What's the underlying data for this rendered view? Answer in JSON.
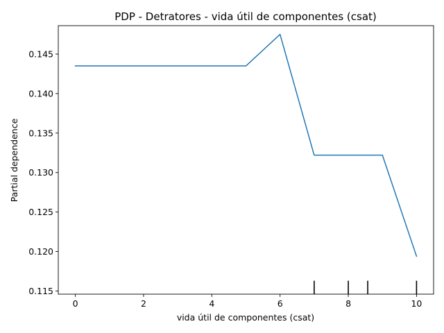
{
  "chart_data": {
    "type": "line",
    "title": "PDP - Detratores - vida útil de componentes (csat)",
    "xlabel": "vida útil de componentes (csat)",
    "ylabel": "Partial dependence",
    "xlim": [
      -0.5,
      10.5
    ],
    "ylim": [
      0.1146,
      0.1486
    ],
    "xticks": [
      0,
      2,
      4,
      6,
      8,
      10
    ],
    "xtick_labels": [
      "0",
      "2",
      "4",
      "6",
      "8",
      "10"
    ],
    "yticks": [
      0.115,
      0.12,
      0.125,
      0.13,
      0.135,
      0.14,
      0.145
    ],
    "ytick_labels": [
      "0.115",
      "0.120",
      "0.125",
      "0.130",
      "0.135",
      "0.140",
      "0.145"
    ],
    "grid": false,
    "series": [
      {
        "color": "#1f77b4",
        "x": [
          0,
          5,
          6,
          7,
          9,
          10
        ],
        "y": [
          0.1435,
          0.1435,
          0.1475,
          0.1322,
          0.1322,
          0.1194
        ]
      }
    ],
    "rug": {
      "color": "#000000",
      "x": [
        7,
        8,
        8.57,
        10
      ]
    }
  }
}
